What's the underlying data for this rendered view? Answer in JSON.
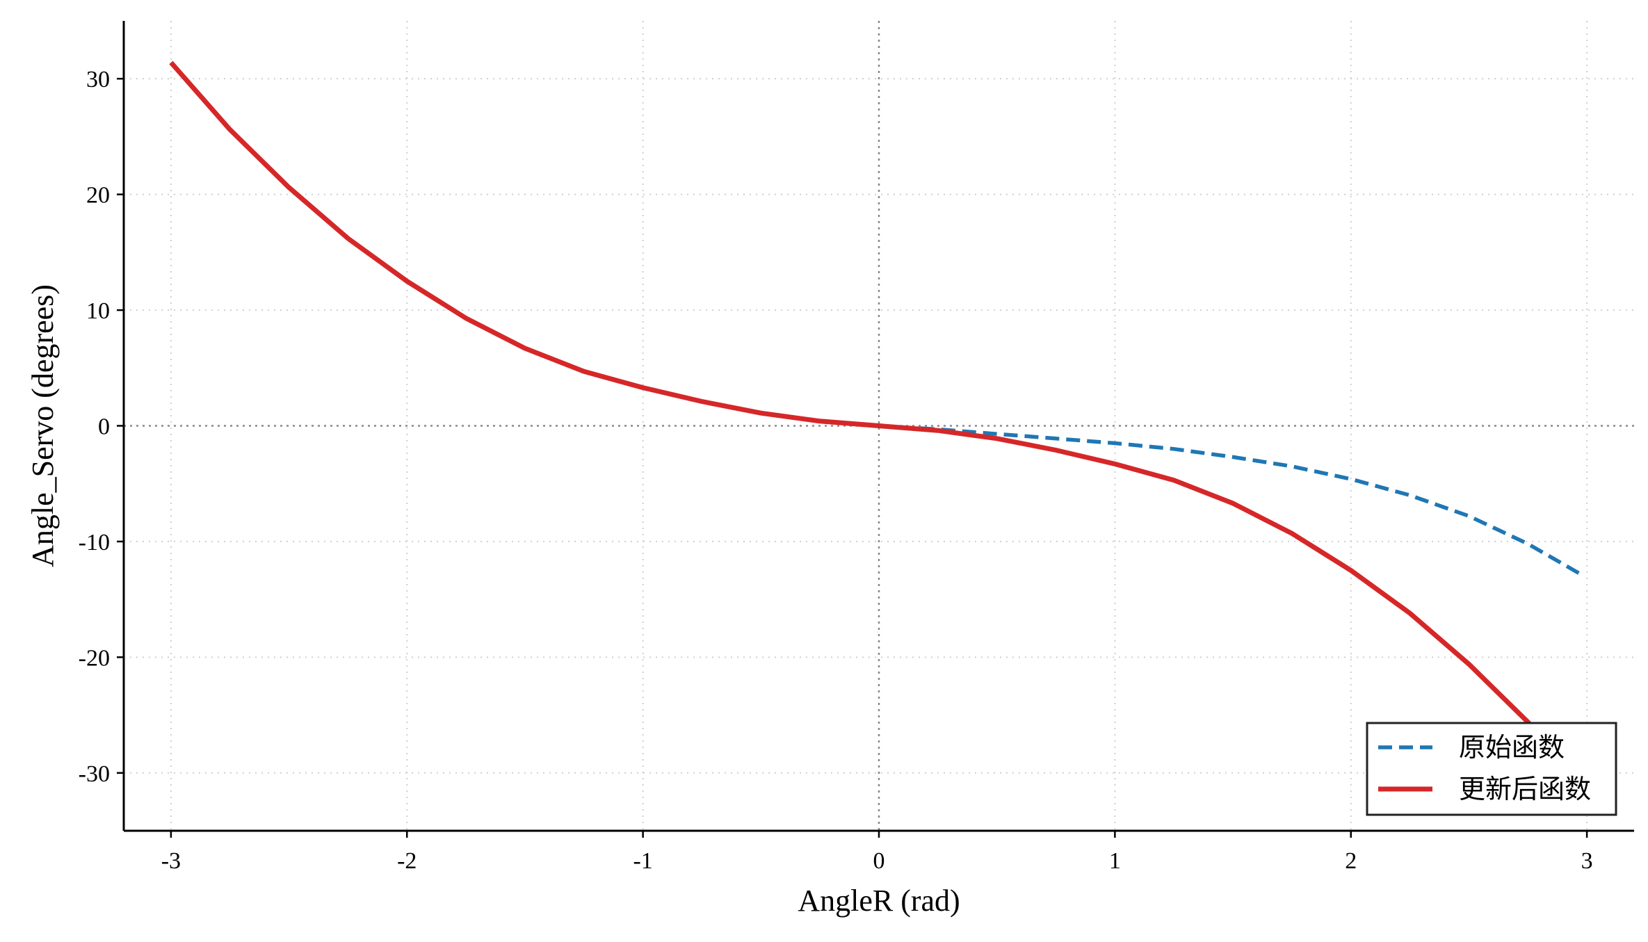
{
  "chart_data": {
    "type": "line",
    "title": "",
    "xlabel": "AngleR (rad)",
    "ylabel": "Angle_Servo (degrees)",
    "xlim": [
      -3.2,
      3.2
    ],
    "ylim": [
      -35,
      35
    ],
    "xticks": [
      -3,
      -2,
      -1,
      0,
      1,
      2,
      3
    ],
    "yticks": [
      -30,
      -20,
      -10,
      0,
      10,
      20,
      30
    ],
    "xtick_labels": [
      "-3",
      "-2",
      "-1",
      "0",
      "1",
      "2",
      "3"
    ],
    "ytick_labels": [
      "-30",
      "-20",
      "-10",
      "0",
      "10",
      "20",
      "30"
    ],
    "grid": true,
    "grid_style": "dotted",
    "reference_lines": {
      "x": 0,
      "y": 0
    },
    "legend": {
      "position": "bottom-right"
    },
    "series": [
      {
        "name": "原始函数",
        "style": "dashed",
        "color": "#1f77b4",
        "x": [
          0,
          0.25,
          0.5,
          0.75,
          1.0,
          1.25,
          1.5,
          1.75,
          2.0,
          2.25,
          2.5,
          2.75,
          2.98
        ],
        "y": [
          0,
          -0.3,
          -0.7,
          -1.1,
          -1.5,
          -2.0,
          -2.7,
          -3.5,
          -4.6,
          -6.0,
          -7.8,
          -10.2,
          -12.9
        ]
      },
      {
        "name": "更新后函数",
        "style": "solid",
        "color": "#d62728",
        "x": [
          -3.0,
          -2.75,
          -2.5,
          -2.25,
          -2.0,
          -1.75,
          -1.5,
          -1.25,
          -1.0,
          -0.75,
          -0.5,
          -0.25,
          0,
          0.25,
          0.5,
          0.75,
          1.0,
          1.25,
          1.5,
          1.75,
          2.0,
          2.25,
          2.5,
          2.75,
          2.98
        ],
        "y": [
          31.4,
          25.6,
          20.6,
          16.2,
          12.5,
          9.3,
          6.7,
          4.7,
          3.3,
          2.1,
          1.1,
          0.4,
          0,
          -0.4,
          -1.1,
          -2.1,
          -3.3,
          -4.7,
          -6.7,
          -9.3,
          -12.5,
          -16.2,
          -20.6,
          -25.6,
          -30.6
        ]
      }
    ]
  }
}
